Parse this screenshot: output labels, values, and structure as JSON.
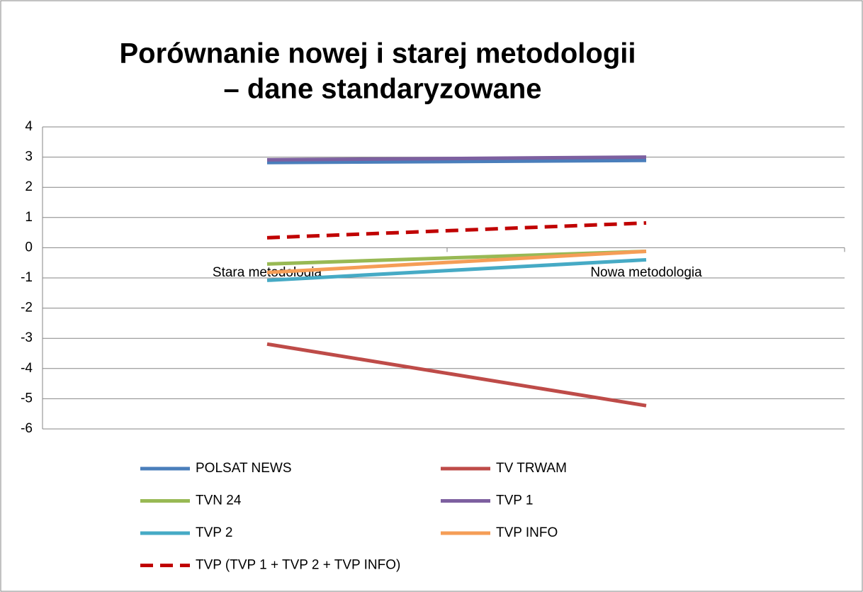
{
  "chart_data": {
    "type": "line",
    "title": [
      "Porównanie nowej i starej metodologii",
      "– dane standaryzowane"
    ],
    "categories": [
      "Stara metodologia",
      "Nowa metodologia"
    ],
    "series": [
      {
        "name": "POLSAT NEWS",
        "color": "#4a7ebb",
        "values": [
          2.82,
          2.89
        ]
      },
      {
        "name": "TV TRWAM",
        "color": "#be4b48",
        "values": [
          -3.19,
          -5.23
        ]
      },
      {
        "name": "TVN 24",
        "color": "#98b954",
        "values": [
          -0.54,
          -0.12
        ]
      },
      {
        "name": "TVP 1",
        "color": "#7d60a0",
        "values": [
          2.91,
          3.0
        ]
      },
      {
        "name": "TVP 2",
        "color": "#46aac5",
        "values": [
          -1.08,
          -0.4
        ]
      },
      {
        "name": "TVP INFO",
        "color": "#f59d56",
        "values": [
          -0.82,
          -0.12
        ]
      },
      {
        "name": "TVP (TVP 1 + TVP 2 + TVP INFO)",
        "color": "#c00000",
        "dashed": true,
        "values": [
          0.33,
          0.82
        ]
      }
    ],
    "ylim": [
      -6,
      4
    ],
    "yticks": [
      -6,
      -5,
      -4,
      -3,
      -2,
      -1,
      0,
      1,
      2,
      3,
      4
    ],
    "grid": true,
    "legend": "bottom"
  }
}
